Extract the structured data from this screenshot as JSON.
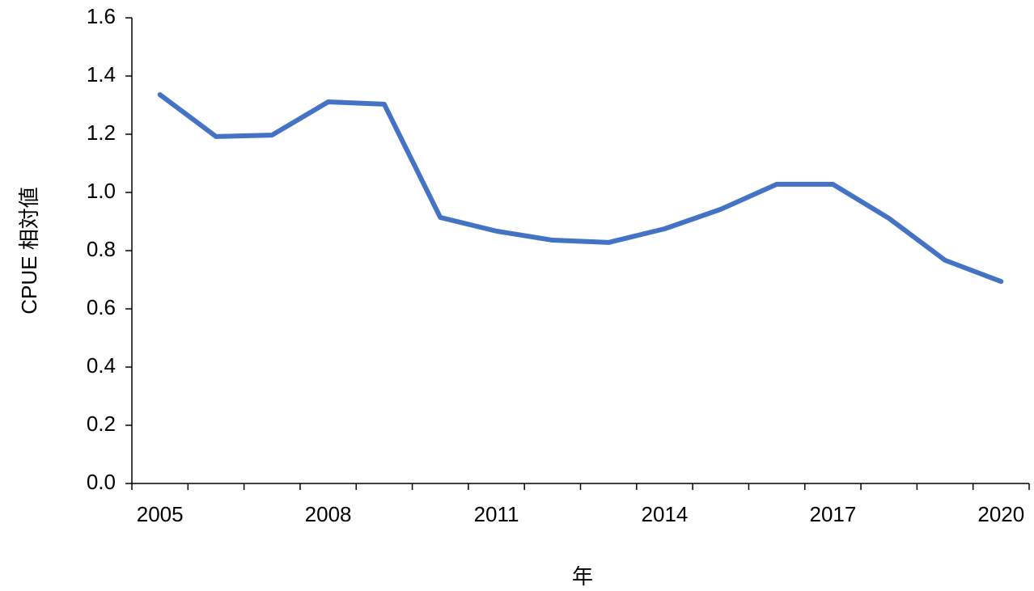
{
  "chart_data": {
    "type": "line",
    "x_label": "年",
    "y_label": "CPUE 相対値",
    "categories": [
      "2005",
      null,
      null,
      "2008",
      null,
      null,
      "2011",
      null,
      null,
      "2014",
      null,
      null,
      "2017",
      null,
      null,
      "2020"
    ],
    "values": [
      1.336,
      1.192,
      1.197,
      1.311,
      1.303,
      0.914,
      0.867,
      0.836,
      0.828,
      0.875,
      0.942,
      1.028,
      1.028,
      0.911,
      0.767,
      0.694
    ],
    "color": "#4472c4",
    "ylim": [
      0,
      1.6
    ],
    "yticks": [
      {
        "value": 0,
        "label": "0.0"
      },
      0.2,
      0.4,
      0.6,
      0.8,
      {
        "value": 1,
        "label": "1.0"
      },
      1.2,
      1.4,
      1.6
    ],
    "grid": false
  }
}
